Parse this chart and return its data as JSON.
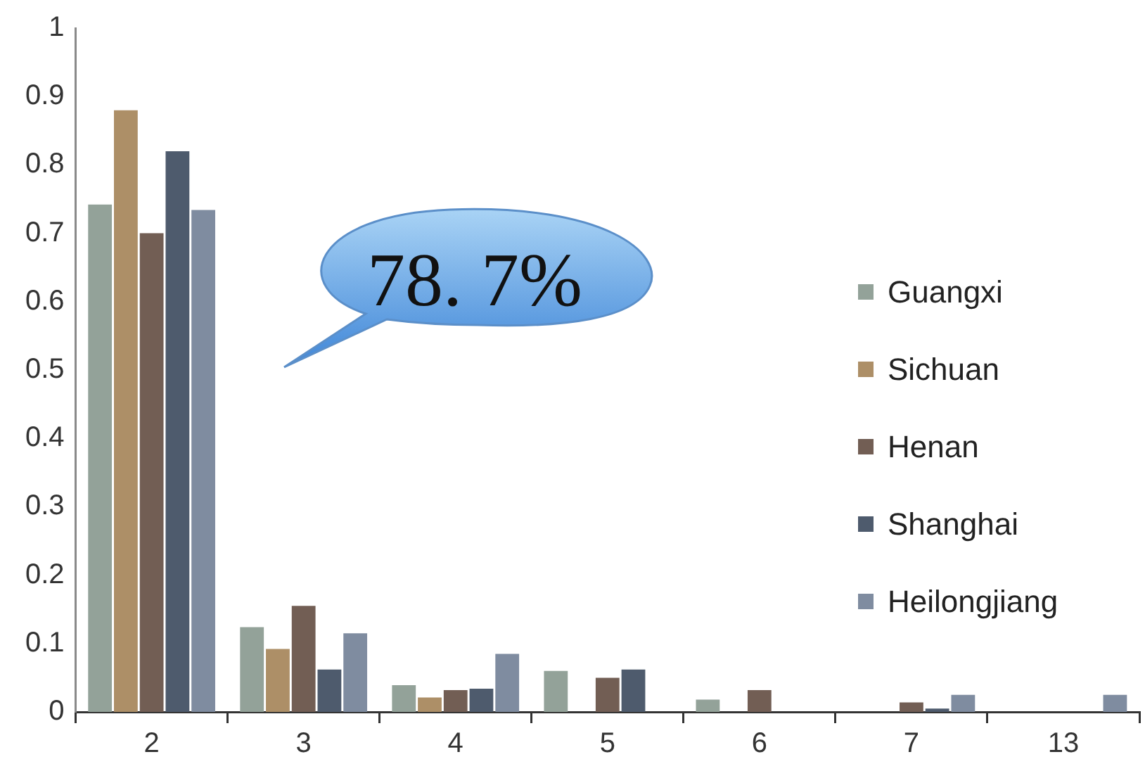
{
  "chart_data": {
    "type": "bar",
    "categories": [
      "2",
      "3",
      "4",
      "5",
      "6",
      "7",
      "13"
    ],
    "series": [
      {
        "name": "Guangxi",
        "color": "#93a299",
        "values": [
          0.742,
          0.124,
          0.039,
          0.06,
          0.018,
          null,
          null
        ]
      },
      {
        "name": "Sichuan",
        "color": "#ad8f67",
        "values": [
          0.88,
          0.092,
          0.021,
          null,
          null,
          null,
          null
        ]
      },
      {
        "name": "Henan",
        "color": "#725e54",
        "values": [
          0.7,
          0.155,
          0.032,
          0.05,
          0.032,
          0.014,
          null
        ]
      },
      {
        "name": "Shanghai",
        "color": "#4e5b6d",
        "values": [
          0.82,
          0.062,
          0.034,
          0.062,
          null,
          0.005,
          null
        ]
      },
      {
        "name": "Heilongjiang",
        "color": "#7f8ca0",
        "values": [
          0.734,
          0.115,
          0.085,
          null,
          null,
          0.025,
          0.025
        ]
      }
    ],
    "ylim": [
      0,
      1
    ],
    "yticks": [
      0,
      0.1,
      0.2,
      0.3,
      0.4,
      0.5,
      0.6,
      0.7,
      0.8,
      0.9,
      1
    ],
    "grid": false,
    "legend": "right",
    "annotations": [
      "78. 7%"
    ]
  }
}
